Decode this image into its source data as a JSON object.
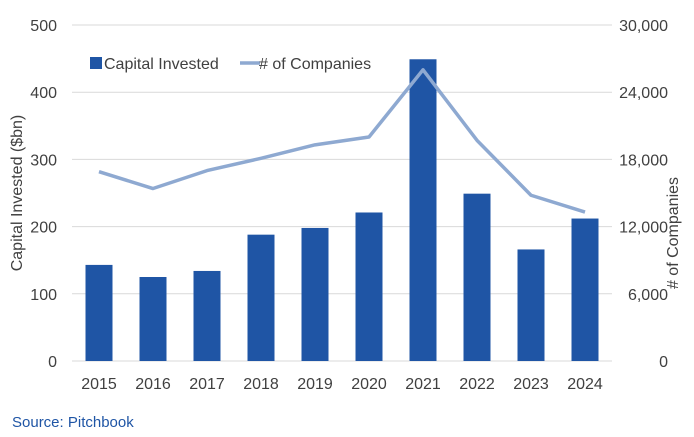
{
  "chart_data": {
    "type": "bar+line",
    "categories": [
      "2015",
      "2016",
      "2017",
      "2018",
      "2019",
      "2020",
      "2021",
      "2022",
      "2023",
      "2024"
    ],
    "series": [
      {
        "name": "Capital Invested",
        "kind": "bar",
        "axis": "left",
        "values": [
          143,
          125,
          134,
          188,
          198,
          221,
          449,
          249,
          166,
          212
        ]
      },
      {
        "name": "# of Companies",
        "kind": "line",
        "axis": "right",
        "values": [
          16900,
          15400,
          17000,
          18100,
          19300,
          20000,
          26000,
          19700,
          14800,
          13300
        ]
      }
    ],
    "ylabel": "Capital Invested ($bn)",
    "y2label": "# of Companies",
    "ylim": [
      0,
      500
    ],
    "y2lim": [
      0,
      30000
    ],
    "yticks": [
      "0",
      "100",
      "200",
      "300",
      "400",
      "500"
    ],
    "y2ticks": [
      "0",
      "6,000",
      "12,000",
      "18,000",
      "24,000",
      "30,000"
    ],
    "legend_position": "top-left",
    "grid": true
  },
  "colors": {
    "bar": "#1F55A5",
    "line": "#8EA9D1",
    "grid": "#D9D9D9",
    "text": "#404040",
    "source": "#1F55A5"
  },
  "source": "Source: Pitchbook"
}
